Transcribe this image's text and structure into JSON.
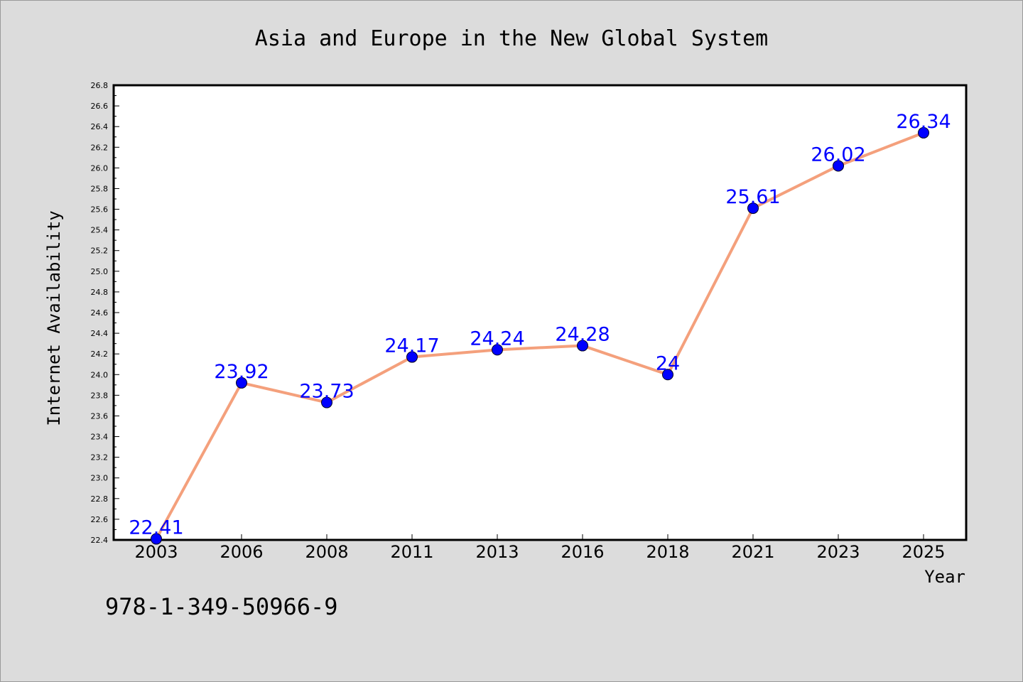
{
  "colors": {
    "background": "#dcdcdc",
    "plot_background": "#ffffff",
    "line": "#f4a07c",
    "marker": "#0000ff",
    "data_label": "#0000ff"
  },
  "footer": {
    "text": "978-1-349-50966-9"
  },
  "chart_data": {
    "type": "line",
    "title": "Asia and Europe in the New Global System",
    "xlabel": "Year",
    "ylabel": "Internet Availability",
    "categories": [
      "2003",
      "2006",
      "2008",
      "2011",
      "2013",
      "2016",
      "2018",
      "2021",
      "2023",
      "2025"
    ],
    "series": [
      {
        "values": [
          22.41,
          23.92,
          23.73,
          24.17,
          24.24,
          24.28,
          24,
          25.61,
          26.02,
          26.34
        ],
        "data_labels": [
          "22.41",
          "23.92",
          "23.73",
          "24.17",
          "24.24",
          "24.28",
          "24",
          "25.61",
          "26.02",
          "26.34"
        ]
      }
    ],
    "ylim": [
      22.4,
      26.8
    ],
    "yticks": [
      "22.4",
      "22.6",
      "22.8",
      "23.0",
      "23.2",
      "23.4",
      "23.6",
      "23.8",
      "24.0",
      "24.2",
      "24.4",
      "24.6",
      "24.8",
      "25.0",
      "25.2",
      "25.4",
      "25.6",
      "25.8",
      "26.0",
      "26.2",
      "26.4",
      "26.6",
      "26.8"
    ],
    "grid": false,
    "legend": "none"
  }
}
